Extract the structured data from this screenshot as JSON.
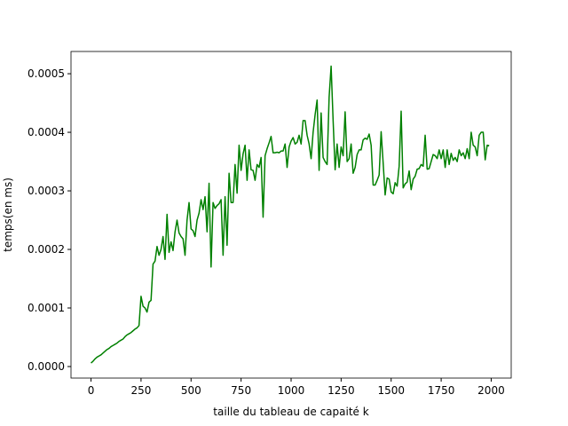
{
  "chart_data": {
    "type": "line",
    "xlabel": "taille du tableau de capaité k",
    "ylabel": "temps(en ms)",
    "color": "#008000",
    "xlim": [
      -100,
      2100
    ],
    "ylim": [
      -1.97e-05,
      0.000538
    ],
    "xticks": [
      0,
      250,
      500,
      750,
      1000,
      1250,
      1500,
      1750,
      2000
    ],
    "yticks": [
      {
        "value": 0,
        "label": "0.0000"
      },
      {
        "value": 0.0001,
        "label": "0.0001"
      },
      {
        "value": 0.0002,
        "label": "0.0002"
      },
      {
        "value": 0.0003,
        "label": "0.0003"
      },
      {
        "value": 0.0004,
        "label": "0.0004"
      },
      {
        "value": 0.0005,
        "label": "0.0005"
      }
    ],
    "x": [
      0,
      10,
      20,
      30,
      40,
      50,
      60,
      70,
      80,
      90,
      100,
      110,
      120,
      130,
      140,
      150,
      160,
      170,
      180,
      190,
      200,
      210,
      220,
      230,
      240,
      250,
      260,
      270,
      280,
      290,
      300,
      310,
      320,
      330,
      340,
      350,
      360,
      370,
      380,
      390,
      400,
      410,
      420,
      430,
      440,
      450,
      460,
      470,
      480,
      490,
      500,
      510,
      520,
      530,
      540,
      550,
      560,
      570,
      580,
      590,
      600,
      610,
      620,
      630,
      640,
      650,
      660,
      670,
      680,
      690,
      700,
      710,
      720,
      730,
      740,
      750,
      760,
      770,
      780,
      790,
      800,
      810,
      820,
      830,
      840,
      850,
      860,
      870,
      880,
      890,
      900,
      910,
      920,
      930,
      940,
      950,
      960,
      970,
      980,
      990,
      1000,
      1010,
      1020,
      1030,
      1040,
      1050,
      1060,
      1070,
      1080,
      1090,
      1100,
      1110,
      1120,
      1130,
      1140,
      1150,
      1160,
      1170,
      1180,
      1190,
      1200,
      1210,
      1220,
      1230,
      1240,
      1250,
      1260,
      1270,
      1280,
      1290,
      1300,
      1310,
      1320,
      1330,
      1340,
      1350,
      1360,
      1370,
      1380,
      1390,
      1400,
      1410,
      1420,
      1430,
      1440,
      1450,
      1460,
      1470,
      1480,
      1490,
      1500,
      1510,
      1520,
      1530,
      1540,
      1550,
      1560,
      1570,
      1580,
      1590,
      1600,
      1610,
      1620,
      1630,
      1640,
      1650,
      1660,
      1670,
      1680,
      1690,
      1700,
      1710,
      1720,
      1730,
      1740,
      1750,
      1760,
      1770,
      1780,
      1790,
      1800,
      1810,
      1820,
      1830,
      1840,
      1850,
      1860,
      1870,
      1880,
      1890,
      1900,
      1910,
      1920,
      1930,
      1940,
      1950,
      1960,
      1970,
      1980,
      1990
    ],
    "values": [
      6e-06,
      9e-06,
      1.3e-05,
      1.6e-05,
      1.8e-05,
      2e-05,
      2.3e-05,
      2.6e-05,
      2.9e-05,
      3.1e-05,
      3.4e-05,
      3.6e-05,
      3.8e-05,
      4e-05,
      4.3e-05,
      4.5e-05,
      4.7e-05,
      5.1e-05,
      5.4e-05,
      5.6e-05,
      5.8e-05,
      6.1e-05,
      6.4e-05,
      6.6e-05,
      7e-05,
      0.00012,
      0.000103,
      0.0001,
      9.3e-05,
      0.00011,
      0.000113,
      0.000175,
      0.00018,
      0.000205,
      0.00019,
      0.0002,
      0.000222,
      0.000183,
      0.00026,
      0.000195,
      0.000213,
      0.000198,
      0.00023,
      0.00025,
      0.000228,
      0.000222,
      0.000218,
      0.00019,
      0.00025,
      0.00028,
      0.000235,
      0.000232,
      0.000222,
      0.00025,
      0.000262,
      0.000285,
      0.000268,
      0.00029,
      0.00023,
      0.000313,
      0.00017,
      0.00028,
      0.00027,
      0.000275,
      0.000278,
      0.000285,
      0.00019,
      0.00029,
      0.000207,
      0.00033,
      0.00028,
      0.00028,
      0.000345,
      0.000296,
      0.000378,
      0.000335,
      0.000363,
      0.000378,
      0.000318,
      0.00037,
      0.000336,
      0.000335,
      0.000318,
      0.000345,
      0.00034,
      0.000357,
      0.000255,
      0.00036,
      0.000372,
      0.000382,
      0.000393,
      0.000365,
      0.000365,
      0.000366,
      0.000365,
      0.000368,
      0.000368,
      0.00038,
      0.00034,
      0.000375,
      0.000385,
      0.000391,
      0.00038,
      0.000383,
      0.000395,
      0.00038,
      0.00042,
      0.00042,
      0.000395,
      0.00038,
      0.000355,
      0.0004,
      0.00043,
      0.000455,
      0.000335,
      0.000433,
      0.000357,
      0.00035,
      0.000345,
      0.00046,
      0.000513,
      0.00042,
      0.000336,
      0.00038,
      0.00034,
      0.000375,
      0.00036,
      0.000435,
      0.00035,
      0.000355,
      0.00038,
      0.00033,
      0.00034,
      0.000362,
      0.00037,
      0.00037,
      0.000387,
      0.00039,
      0.000388,
      0.000397,
      0.000378,
      0.00031,
      0.00031,
      0.000318,
      0.000327,
      0.000401,
      0.000348,
      0.000293,
      0.000322,
      0.00032,
      0.000298,
      0.000295,
      0.000314,
      0.000308,
      0.000342,
      0.000436,
      0.000305,
      0.000312,
      0.000315,
      0.000334,
      0.000302,
      0.00032,
      0.000325,
      0.000337,
      0.000338,
      0.000345,
      0.000342,
      0.000395,
      0.000337,
      0.000338,
      0.00035,
      0.000362,
      0.00036,
      0.000355,
      0.00037,
      0.000355,
      0.00037,
      0.00034,
      0.00037,
      0.000345,
      0.000364,
      0.000352,
      0.000357,
      0.00035,
      0.00037,
      0.00036,
      0.000365,
      0.000355,
      0.000372,
      0.000355,
      0.0004,
      0.000378,
      0.000375,
      0.00036,
      0.000395,
      0.0004,
      0.0004,
      0.000353,
      0.000378,
      0.000377
    ]
  }
}
